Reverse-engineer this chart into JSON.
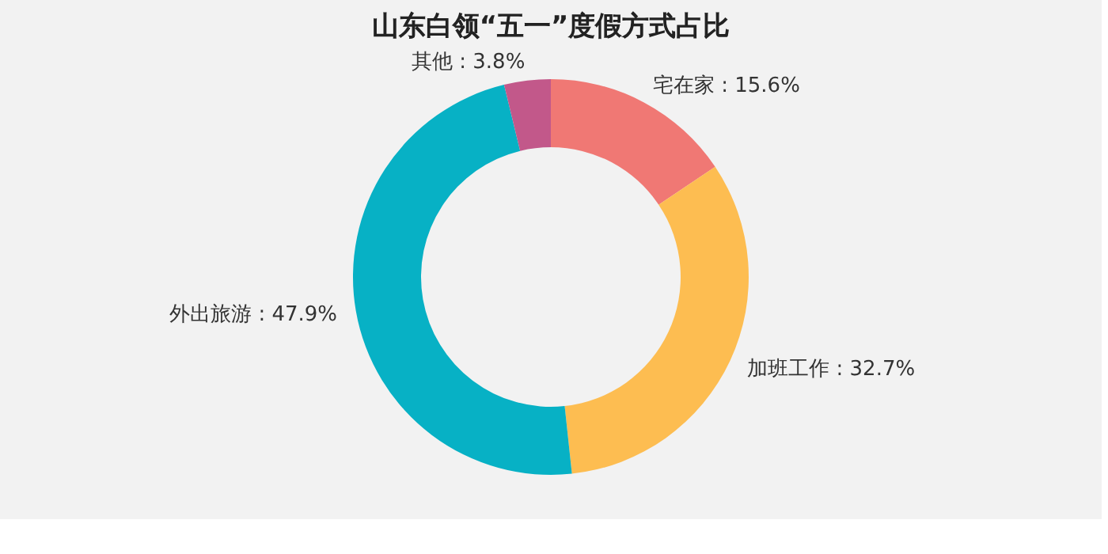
{
  "chart_data": {
    "type": "donut",
    "title": "山东白领“五一”度假方式占比",
    "categories": [
      "宅在家",
      "加班工作",
      "外出旅游",
      "其他"
    ],
    "values": [
      15.6,
      32.7,
      47.9,
      3.8
    ],
    "colors": [
      "#f07874",
      "#fdbd51",
      "#07b1c5",
      "#c2588a"
    ],
    "value_labels": [
      "15.6%",
      "32.7%",
      "47.9%",
      "3.8%"
    ],
    "legend": false
  }
}
